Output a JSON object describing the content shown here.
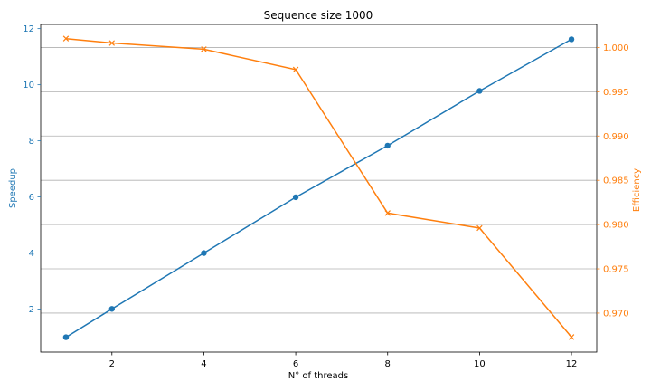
{
  "chart_data": {
    "type": "line",
    "title": "Sequence size 1000",
    "xlabel": "N° of threads",
    "ylabel_left": "Speedup",
    "ylabel_right": "Efficiency",
    "x": [
      1,
      2,
      4,
      6,
      8,
      10,
      12
    ],
    "x_ticks": [
      2,
      4,
      6,
      8,
      10,
      12
    ],
    "xlim": [
      0.45,
      12.55
    ],
    "y_left_ticks": [
      2,
      4,
      6,
      8,
      10,
      12
    ],
    "y_left_tick_labels": [
      "2",
      "4",
      "6",
      "8",
      "10",
      "12"
    ],
    "ylim_left": [
      0.47,
      12.15
    ],
    "y_right_ticks": [
      0.97,
      0.975,
      0.98,
      0.985,
      0.99,
      0.995,
      1.0
    ],
    "y_right_tick_labels": [
      "0.970",
      "0.975",
      "0.980",
      "0.985",
      "0.990",
      "0.995",
      "1.000"
    ],
    "ylim_right": [
      0.9656,
      1.0026
    ],
    "grid": "horizontal lines at right-axis ticks",
    "series": [
      {
        "axis": "left",
        "values": [
          1.0,
          2.01,
          4.0,
          5.99,
          7.83,
          9.78,
          11.62
        ],
        "color": "#1f77b4",
        "marker": "circle"
      },
      {
        "axis": "right",
        "values": [
          1.001,
          1.0005,
          0.9998,
          0.9975,
          0.9813,
          0.9796,
          0.9673
        ],
        "color": "#ff7f0e",
        "marker": "x"
      }
    ]
  }
}
